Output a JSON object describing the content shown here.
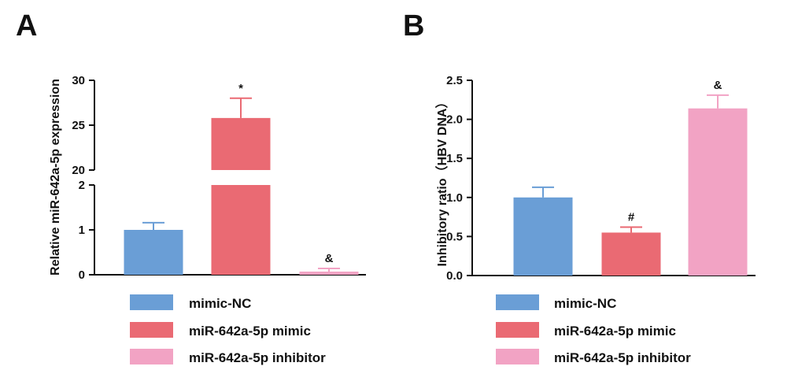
{
  "panels": [
    {
      "letter": "A"
    },
    {
      "letter": "B"
    }
  ],
  "legend": {
    "items": [
      {
        "label": "mimic-NC",
        "color": "#6a9ed6"
      },
      {
        "label": "miR-642a-5p mimic",
        "color": "#ea6a73"
      },
      {
        "label": "miR-642a-5p inhibitor",
        "color": "#f2a3c4"
      }
    ]
  },
  "chart_data": [
    {
      "type": "bar",
      "panel": "A",
      "categories": [
        "mimic-NC",
        "miR-642a-5p mimic",
        "miR-642a-5p inhibitor"
      ],
      "series": [
        {
          "values": [
            1.0,
            25.8,
            0.07
          ],
          "errors": [
            0.16,
            2.2,
            0.07
          ]
        }
      ],
      "annotations": [
        "",
        "*",
        "&"
      ],
      "ylabel": "Relative miR-642a-5p expression",
      "axis_break": {
        "lower_range": [
          0,
          2
        ],
        "upper_range": [
          20,
          30
        ]
      },
      "yticks_lower": [
        "0",
        "1",
        "2"
      ],
      "yticks_upper": [
        "20",
        "25",
        "30"
      ],
      "colors": [
        "#6a9ed6",
        "#ea6a73",
        "#f2a3c4"
      ],
      "legend_position": "bottom"
    },
    {
      "type": "bar",
      "panel": "B",
      "categories": [
        "mimic-NC",
        "miR-642a-5p mimic",
        "miR-642a-5p inhibitor"
      ],
      "series": [
        {
          "values": [
            1.0,
            0.55,
            2.14
          ],
          "errors": [
            0.13,
            0.07,
            0.17
          ]
        }
      ],
      "annotations": [
        "",
        "#",
        "&"
      ],
      "ylabel": "Inhibitory ratio（HBV DNA）",
      "ylim": [
        0,
        2.5
      ],
      "yticks": [
        "0.0",
        "0.5",
        "1.0",
        "1.5",
        "2.0",
        "2.5"
      ],
      "colors": [
        "#6a9ed6",
        "#ea6a73",
        "#f2a3c4"
      ],
      "legend_position": "bottom"
    }
  ]
}
